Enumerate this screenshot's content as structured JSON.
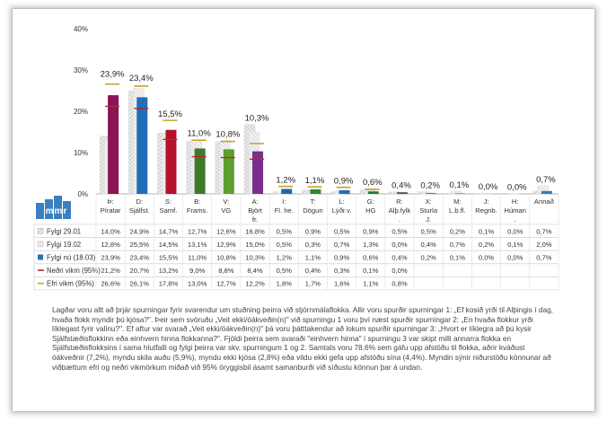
{
  "chart_data": {
    "type": "bar",
    "ylim": [
      0,
      40
    ],
    "yticks": [
      "0%",
      "10%",
      "20%",
      "30%",
      "40%"
    ],
    "categories": [
      [
        "Þ:",
        "Píratar"
      ],
      [
        "D:",
        "Sjálfst."
      ],
      [
        "S:",
        "Samf."
      ],
      [
        "B:",
        "Frams."
      ],
      [
        "V:",
        "VG"
      ],
      [
        "A:",
        "Björt",
        "fr."
      ],
      [
        "I:",
        "Fl. he."
      ],
      [
        "T:",
        "Dögun"
      ],
      [
        "L:",
        "Lýðr.v."
      ],
      [
        "G:",
        "HG"
      ],
      [
        "R:",
        "Alþ.fylk",
        "."
      ],
      [
        "X:",
        "Sturla",
        "J."
      ],
      [
        "M:",
        "L.b.fl."
      ],
      [
        "J:",
        "Regnb."
      ],
      [
        "H:",
        "Húman",
        "."
      ],
      [
        "Annað"
      ]
    ],
    "party_colors": [
      "#8b1456",
      "#1f6fb8",
      "#b3112a",
      "#3d7a2a",
      "#5e9e2f",
      "#7a2e8c",
      "#2166ac",
      "#2a8a2a",
      "#1f6fb8",
      "#1f7a3a",
      "#555555",
      "#8a6d2a",
      "#3a6a2a",
      "#2a5fa0",
      "#6a6a6a",
      "#2f7fc0"
    ],
    "value_labels": [
      "23,9%",
      "23,4%",
      "15,5%",
      "11,0%",
      "10,8%",
      "10,3%",
      "1,2%",
      "1,1%",
      "0,9%",
      "0,6%",
      "0,4%",
      "0,2%",
      "0,1%",
      "0,0%",
      "0,0%",
      "0,7%"
    ],
    "series": [
      {
        "name": "Fylgi 29.01",
        "values": [
          14.0,
          24.9,
          14.7,
          12.7,
          12.6,
          16.8,
          0.5,
          0.9,
          0.5,
          0.9,
          0.5,
          0.5,
          0.2,
          0.1,
          0.0,
          0.7
        ],
        "cells": [
          "14,0%",
          "24,9%",
          "14,7%",
          "12,7%",
          "12,6%",
          "16,8%",
          "0,5%",
          "0,9%",
          "0,5%",
          "0,9%",
          "0,5%",
          "0,5%",
          "0,2%",
          "0,1%",
          "0,0%",
          "0,7%"
        ]
      },
      {
        "name": "Fylgi 19.02",
        "values": [
          12.8,
          25.5,
          14.5,
          13.1,
          12.9,
          15.0,
          0.5,
          0.3,
          0.7,
          1.3,
          0.0,
          0.4,
          0.7,
          0.2,
          0.1,
          2.0
        ],
        "cells": [
          "12,8%",
          "25,5%",
          "14,5%",
          "13,1%",
          "12,9%",
          "15,0%",
          "0,5%",
          "0,3%",
          "0,7%",
          "1,3%",
          "0,0%",
          "0,4%",
          "0,7%",
          "0,2%",
          "0,1%",
          "2,0%"
        ]
      },
      {
        "name": "Fylgi nú (18.03)",
        "values": [
          23.9,
          23.4,
          15.5,
          11.0,
          10.8,
          10.3,
          1.2,
          1.1,
          0.9,
          0.6,
          0.4,
          0.2,
          0.1,
          0.0,
          0.0,
          0.7
        ],
        "cells": [
          "23,9%",
          "23,4%",
          "15,5%",
          "11,0%",
          "10,8%",
          "10,3%",
          "1,2%",
          "1,1%",
          "0,9%",
          "0,6%",
          "0,4%",
          "0,2%",
          "0,1%",
          "0,0%",
          "0,0%",
          "0,7%"
        ]
      },
      {
        "name": "Neðri vikm (95%)",
        "values": [
          21.2,
          20.7,
          13.2,
          9.0,
          8.8,
          8.4,
          0.5,
          0.4,
          0.3,
          0.1,
          0.0,
          null,
          null,
          null,
          null,
          null
        ],
        "cells": [
          "21,2%",
          "20,7%",
          "13,2%",
          "9,0%",
          "8,8%",
          "8,4%",
          "0,5%",
          "0,4%",
          "0,3%",
          "0,1%",
          "0,0%",
          "",
          "",
          "",
          "",
          ""
        ]
      },
      {
        "name": "Efri vikm (95%)",
        "values": [
          26.6,
          26.1,
          17.8,
          13.0,
          12.7,
          12.2,
          1.8,
          1.7,
          1.6,
          1.1,
          0.8,
          null,
          null,
          null,
          null,
          null
        ],
        "cells": [
          "26,6%",
          "26,1%",
          "17,8%",
          "13,0%",
          "12,7%",
          "12,2%",
          "1,8%",
          "1,7%",
          "1,6%",
          "1,1%",
          "0,8%",
          "",
          "",
          "",
          "",
          ""
        ]
      }
    ]
  },
  "logo_text": "mmr",
  "note": "Lagðar voru allt að þrjár spurningar fyrir svarendur um stuðning þeirra við stjórnmálaflokka. Allir voru spurðir spurningar 1: „Ef kosið yrði til Alþingis í dag, hvaða flokk myndir þú kjósa?\". Þeir sem svöruðu „Veit ekki/óákveðin(n)\" við spurningu 1 voru því næst spurðir spurningar 2: „En hvaða flokkur yrði líklegast fyrir valinu?\". Ef aftur var svarað „Veit ekki/óákveðin(n)\" þá voru þátttakendur að lokum spurðir spurningar 3: „Hvort er líklegra að þú kysir Sjálfstæðisflokkinn eða einhvern hinna flokkanna?\". Fjöldi þeirra sem svaraði \"einhvern hinna\" í spurningu 3 var skipt milli annarra flokka en Sjálfstæðisflokksins í sama hlutfalli og fylgi þeirra var skv. spurningum 1 og 2. Samtals voru 78,6% sem gáfu upp afstöðu til flokka, aðrir kváðust óákveðnir (7,2%), myndu skila auðu (5,9%), myndu ekki kjósa (2,8%) eða vildu ekki gefa upp afstöðu sína (4,4%). Myndin sýnir niðurstöðu könnunar að viðbættum efri og neðri vikmörkum miðað við 95% öryggisbil ásamt samanburði við síðustu könnun þar á undan."
}
